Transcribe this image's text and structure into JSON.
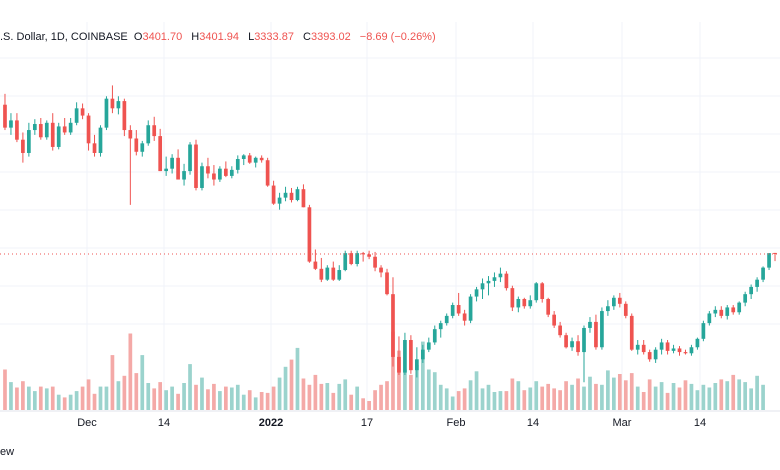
{
  "legend": {
    "symbol": ".S. Dollar, 1D, COINBASE",
    "open_label": "O",
    "open_value": "3401.70",
    "high_label": "H",
    "high_value": "3401.94",
    "low_label": "L",
    "low_value": "3333.87",
    "close_label": "C",
    "close_value": "3393.02",
    "change": "−8.69 (−0.26%)"
  },
  "footer_text": "ew",
  "colors": {
    "up": "#26a69a",
    "down": "#ef5350",
    "vol_up": "#9bd3cd",
    "vol_down": "#f4a9a7",
    "price_line": "#ef5350",
    "grid": "#f0f3fa"
  },
  "chart_data": {
    "type": "candlestick",
    "x_tick_labels": [
      "Dec",
      "14",
      "2022",
      "17",
      "Feb",
      "14",
      "Mar",
      "14"
    ],
    "ylim": [
      2100,
      5100
    ],
    "price_line": 3393.02,
    "candles": [
      [
        4630,
        4720,
        4420,
        4440
      ],
      [
        4440,
        4560,
        4380,
        4500
      ],
      [
        4500,
        4560,
        4320,
        4340
      ],
      [
        4340,
        4400,
        4150,
        4230
      ],
      [
        4230,
        4480,
        4200,
        4420
      ],
      [
        4420,
        4510,
        4380,
        4470
      ],
      [
        4470,
        4520,
        4340,
        4360
      ],
      [
        4360,
        4500,
        4340,
        4480
      ],
      [
        4480,
        4560,
        4250,
        4280
      ],
      [
        4280,
        4480,
        4260,
        4450
      ],
      [
        4450,
        4520,
        4380,
        4400
      ],
      [
        4400,
        4520,
        4380,
        4480
      ],
      [
        4480,
        4650,
        4460,
        4600
      ],
      [
        4600,
        4640,
        4510,
        4540
      ],
      [
        4540,
        4560,
        4250,
        4310
      ],
      [
        4310,
        4380,
        4200,
        4230
      ],
      [
        4230,
        4460,
        4200,
        4440
      ],
      [
        4440,
        4700,
        4420,
        4680
      ],
      [
        4680,
        4790,
        4560,
        4600
      ],
      [
        4600,
        4700,
        4550,
        4660
      ],
      [
        4660,
        4680,
        4370,
        4420
      ],
      [
        4420,
        4460,
        3800,
        4350
      ],
      [
        4350,
        4420,
        4210,
        4240
      ],
      [
        4240,
        4330,
        4200,
        4310
      ],
      [
        4310,
        4500,
        4290,
        4460
      ],
      [
        4460,
        4530,
        4330,
        4370
      ],
      [
        4370,
        4430,
        4080,
        4080
      ],
      [
        4080,
        4200,
        4040,
        4100
      ],
      [
        4100,
        4220,
        4060,
        4190
      ],
      [
        4190,
        4260,
        4010,
        4010
      ],
      [
        4010,
        4140,
        3960,
        4080
      ],
      [
        4080,
        4320,
        4050,
        4300
      ],
      [
        4300,
        4340,
        3920,
        3940
      ],
      [
        3940,
        4150,
        3920,
        4120
      ],
      [
        4120,
        4190,
        4020,
        4060
      ],
      [
        4060,
        4130,
        3960,
        4010
      ],
      [
        4010,
        4120,
        3990,
        4100
      ],
      [
        4100,
        4160,
        4030,
        4040
      ],
      [
        4040,
        4120,
        4020,
        4090
      ],
      [
        4090,
        4210,
        4060,
        4180
      ],
      [
        4180,
        4220,
        4130,
        4210
      ],
      [
        4210,
        4230,
        4140,
        4150
      ],
      [
        4150,
        4200,
        4110,
        4190
      ],
      [
        4190,
        4210,
        4150,
        4170
      ],
      [
        4170,
        4190,
        3950,
        3960
      ],
      [
        3960,
        4000,
        3800,
        3810
      ],
      [
        3810,
        3900,
        3760,
        3860
      ],
      [
        3860,
        3950,
        3830,
        3900
      ],
      [
        3900,
        3940,
        3820,
        3840
      ],
      [
        3840,
        3950,
        3830,
        3930
      ],
      [
        3930,
        3970,
        3780,
        3780
      ],
      [
        3780,
        3800,
        3320,
        3330
      ],
      [
        3330,
        3430,
        3260,
        3270
      ],
      [
        3270,
        3360,
        3160,
        3180
      ],
      [
        3180,
        3300,
        3170,
        3280
      ],
      [
        3280,
        3330,
        3170,
        3180
      ],
      [
        3180,
        3300,
        3170,
        3260
      ],
      [
        3260,
        3420,
        3250,
        3400
      ],
      [
        3400,
        3420,
        3300,
        3310
      ],
      [
        3310,
        3420,
        3290,
        3400
      ],
      [
        3400,
        3410,
        3330,
        3390
      ],
      [
        3390,
        3420,
        3350,
        3370
      ],
      [
        3370,
        3410,
        3250,
        3280
      ],
      [
        3280,
        3300,
        3200,
        3240
      ],
      [
        3240,
        3270,
        3050,
        3060
      ],
      [
        3060,
        3200,
        2460,
        2540
      ],
      [
        2540,
        2710,
        2390,
        2410
      ],
      [
        2410,
        2740,
        2390,
        2680
      ],
      [
        2680,
        2720,
        2400,
        2430
      ],
      [
        2430,
        2620,
        2370,
        2520
      ],
      [
        2520,
        2640,
        2490,
        2600
      ],
      [
        2600,
        2700,
        2580,
        2660
      ],
      [
        2660,
        2800,
        2640,
        2770
      ],
      [
        2770,
        2840,
        2700,
        2820
      ],
      [
        2820,
        2900,
        2800,
        2880
      ],
      [
        2880,
        2990,
        2860,
        2970
      ],
      [
        2970,
        3070,
        2880,
        2900
      ],
      [
        2900,
        2930,
        2800,
        2840
      ],
      [
        2840,
        3060,
        2820,
        3040
      ],
      [
        3040,
        3120,
        3000,
        3100
      ],
      [
        3100,
        3190,
        3020,
        3150
      ],
      [
        3150,
        3210,
        3050,
        3170
      ],
      [
        3170,
        3240,
        3120,
        3200
      ],
      [
        3200,
        3280,
        3160,
        3230
      ],
      [
        3230,
        3250,
        3090,
        3110
      ],
      [
        3110,
        3130,
        2920,
        2950
      ],
      [
        2950,
        3040,
        2910,
        3020
      ],
      [
        3020,
        3030,
        2940,
        2960
      ],
      [
        2960,
        3050,
        2940,
        3010
      ],
      [
        3010,
        3160,
        2990,
        3150
      ],
      [
        3150,
        3160,
        2990,
        3020
      ],
      [
        3020,
        3030,
        2870,
        2890
      ],
      [
        2890,
        2920,
        2780,
        2800
      ],
      [
        2800,
        2830,
        2700,
        2720
      ],
      [
        2720,
        2740,
        2610,
        2620
      ],
      [
        2620,
        2700,
        2590,
        2670
      ],
      [
        2670,
        2720,
        2550,
        2580
      ],
      [
        2580,
        2800,
        2330,
        2780
      ],
      [
        2780,
        2870,
        2740,
        2830
      ],
      [
        2830,
        2890,
        2600,
        2620
      ],
      [
        2620,
        2950,
        2600,
        2920
      ],
      [
        2920,
        3010,
        2880,
        2960
      ],
      [
        2960,
        3050,
        2930,
        3030
      ],
      [
        3030,
        3070,
        2950,
        2980
      ],
      [
        2980,
        3000,
        2860,
        2880
      ],
      [
        2880,
        2900,
        2590,
        2600
      ],
      [
        2600,
        2680,
        2560,
        2640
      ],
      [
        2640,
        2680,
        2560,
        2580
      ],
      [
        2580,
        2600,
        2500,
        2520
      ],
      [
        2520,
        2620,
        2490,
        2600
      ],
      [
        2600,
        2690,
        2560,
        2660
      ],
      [
        2660,
        2680,
        2560,
        2590
      ],
      [
        2590,
        2640,
        2570,
        2610
      ],
      [
        2610,
        2630,
        2550,
        2580
      ],
      [
        2580,
        2600,
        2560,
        2570
      ],
      [
        2570,
        2640,
        2550,
        2620
      ],
      [
        2620,
        2700,
        2600,
        2690
      ],
      [
        2690,
        2840,
        2670,
        2820
      ],
      [
        2820,
        2920,
        2800,
        2900
      ],
      [
        2900,
        2960,
        2870,
        2930
      ],
      [
        2930,
        2960,
        2860,
        2880
      ],
      [
        2880,
        2970,
        2850,
        2950
      ],
      [
        2950,
        2970,
        2890,
        2910
      ],
      [
        2910,
        3000,
        2890,
        2990
      ],
      [
        2990,
        3080,
        2960,
        3060
      ],
      [
        3060,
        3140,
        3020,
        3120
      ],
      [
        3120,
        3200,
        3080,
        3180
      ],
      [
        3180,
        3290,
        3160,
        3280
      ],
      [
        3280,
        3400,
        3260,
        3400
      ],
      [
        3401.7,
        3401.94,
        3333.87,
        3393.02
      ]
    ],
    "volumes": [
      0.45,
      0.31,
      0.25,
      0.32,
      0.26,
      0.21,
      0.26,
      0.24,
      0.26,
      0.17,
      0.14,
      0.17,
      0.21,
      0.26,
      0.34,
      0.18,
      0.26,
      0.26,
      0.61,
      0.32,
      0.38,
      0.85,
      0.41,
      0.61,
      0.3,
      0.24,
      0.31,
      0.22,
      0.26,
      0.18,
      0.3,
      0.51,
      0.28,
      0.36,
      0.23,
      0.29,
      0.21,
      0.26,
      0.25,
      0.28,
      0.17,
      0.22,
      0.14,
      0.2,
      0.19,
      0.26,
      0.36,
      0.48,
      0.56,
      0.69,
      0.35,
      0.28,
      0.39,
      0.29,
      0.3,
      0.19,
      0.29,
      0.34,
      0.17,
      0.26,
      0.13,
      0.1,
      0.22,
      0.28,
      0.32,
      0.87,
      0.66,
      0.45,
      0.39,
      0.5,
      0.76,
      0.45,
      0.42,
      0.28,
      0.24,
      0.15,
      0.21,
      0.24,
      0.33,
      0.43,
      0.24,
      0.28,
      0.2,
      0.21,
      0.21,
      0.35,
      0.32,
      0.22,
      0.25,
      0.32,
      0.26,
      0.29,
      0.24,
      0.22,
      0.32,
      0.28,
      0.35,
      0.26,
      0.37,
      0.29,
      0.28,
      0.44,
      0.36,
      0.4,
      0.33,
      0.41,
      0.26,
      0.2,
      0.34,
      0.26,
      0.31,
      0.19,
      0.3,
      0.25,
      0.33,
      0.29,
      0.22,
      0.28,
      0.25,
      0.3,
      0.34,
      0.32,
      0.39,
      0.34,
      0.31,
      0.24,
      0.38,
      0.28
    ]
  }
}
